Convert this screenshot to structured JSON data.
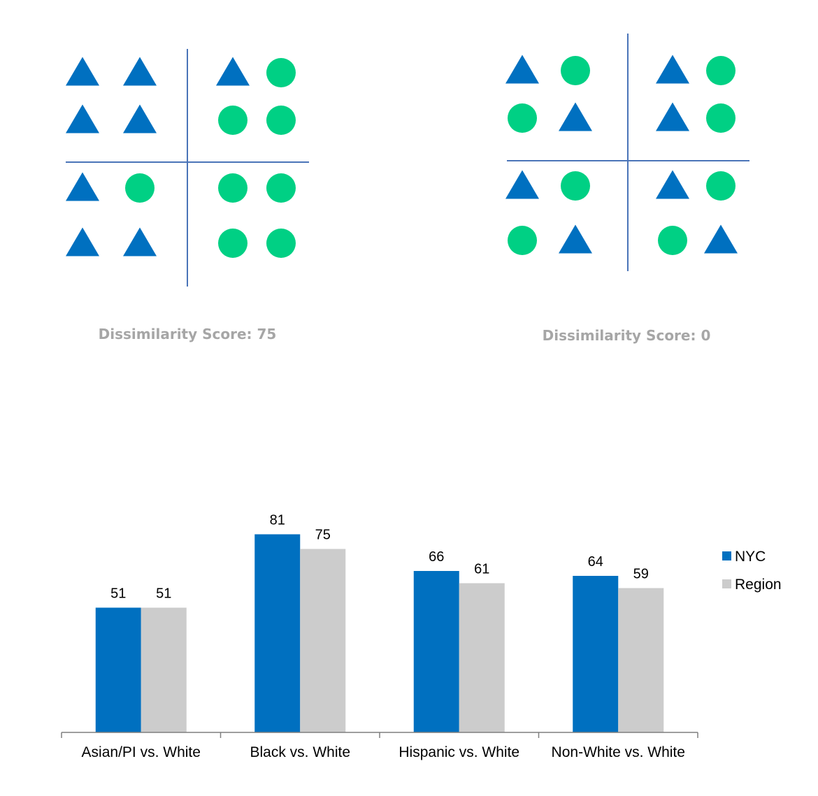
{
  "colors": {
    "triangle": "#0070c0",
    "circle": "#00d084",
    "divider": "#4a74b8",
    "axis": "#7f7f7f"
  },
  "diagrams": [
    {
      "caption": "Dissimilarity Score: 75",
      "shapes": [
        [
          "triangle",
          "triangle",
          "triangle",
          "circle"
        ],
        [
          "triangle",
          "triangle",
          "circle",
          "circle"
        ],
        [
          "triangle",
          "circle",
          "circle",
          "circle"
        ],
        [
          "triangle",
          "triangle",
          "circle",
          "circle"
        ]
      ]
    },
    {
      "caption": "Dissimilarity Score: 0",
      "shapes": [
        [
          "triangle",
          "circle",
          "triangle",
          "circle"
        ],
        [
          "circle",
          "triangle",
          "triangle",
          "circle"
        ],
        [
          "triangle",
          "circle",
          "triangle",
          "circle"
        ],
        [
          "circle",
          "triangle",
          "circle",
          "triangle"
        ]
      ]
    }
  ],
  "chart_data": {
    "type": "bar",
    "categories": [
      "Asian/PI vs. White",
      "Black vs. White",
      "Hispanic vs. White",
      "Non-White vs. White"
    ],
    "series": [
      {
        "name": "NYC",
        "values": [
          51,
          81,
          66,
          64
        ],
        "color": "#0070c0"
      },
      {
        "name": "Region",
        "values": [
          51,
          75,
          61,
          59
        ],
        "color": "#cccccc"
      }
    ],
    "title": "",
    "xlabel": "",
    "ylabel": "",
    "ylim": [
      0,
      100
    ],
    "grid": false,
    "legend_position": "right",
    "data_labels": true
  }
}
